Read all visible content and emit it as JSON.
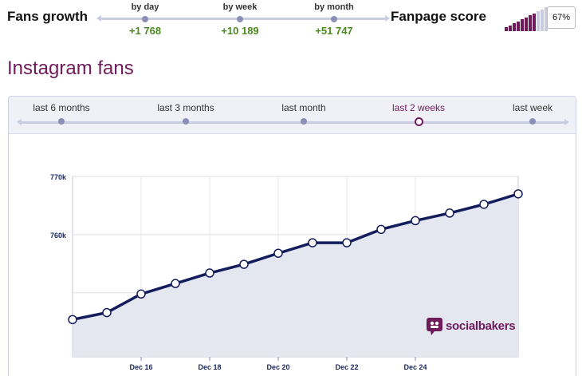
{
  "growth": {
    "title": "Fans growth",
    "stops": [
      {
        "label": "by day",
        "value": "+1 768"
      },
      {
        "label": "by week",
        "value": "+10 189"
      },
      {
        "label": "by month",
        "value": "+51 747"
      }
    ]
  },
  "score": {
    "title": "Fanpage score",
    "value": "67%",
    "level": 0.67,
    "colors": {
      "filled": "#6e1a5b",
      "empty": "#c9cbe0"
    }
  },
  "section": {
    "title": "Instagram fans"
  },
  "periods": {
    "items": [
      "last 6 months",
      "last 3 months",
      "last month",
      "last 2 weeks",
      "last week"
    ],
    "active_index": 3
  },
  "brand": {
    "name": "socialbakers",
    "icon": "socialbakers-logo-icon"
  },
  "chart_data": {
    "type": "area",
    "x": [
      "Dec 14",
      "Dec 15",
      "Dec 16",
      "Dec 17",
      "Dec 18",
      "Dec 19",
      "Dec 20",
      "Dec 21",
      "Dec 22",
      "Dec 23",
      "Dec 24",
      "Dec 25",
      "Dec 26",
      "Dec 27"
    ],
    "values": [
      745400,
      746600,
      749800,
      751600,
      753400,
      754900,
      756800,
      758600,
      758600,
      760900,
      762400,
      763700,
      765200,
      767000
    ],
    "xticks": [
      "Dec 16",
      "Dec 18",
      "Dec 20",
      "Dec 22",
      "Dec 24"
    ],
    "yticks": [
      "770k",
      "760k"
    ],
    "ylim": [
      739000,
      770000
    ],
    "grid": true,
    "colors": {
      "line": "#141d5c",
      "fill": "#e4e6f0",
      "marker": "#ffffff"
    }
  }
}
